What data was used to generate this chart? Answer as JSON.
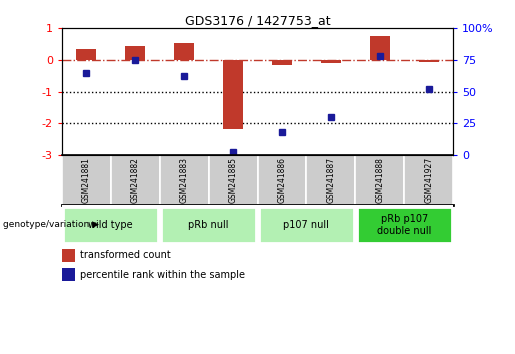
{
  "title": "GDS3176 / 1427753_at",
  "samples": [
    "GSM241881",
    "GSM241882",
    "GSM241883",
    "GSM241885",
    "GSM241886",
    "GSM241887",
    "GSM241888",
    "GSM241927"
  ],
  "bar_values": [
    0.35,
    0.45,
    0.55,
    -2.2,
    -0.15,
    -0.1,
    0.75,
    -0.05
  ],
  "percentile_values": [
    65,
    75,
    62,
    2,
    18,
    30,
    78,
    52
  ],
  "left_ylim": [
    -3,
    1
  ],
  "right_ylim": [
    0,
    100
  ],
  "bar_color": "#c0392b",
  "dot_color": "#1a1a99",
  "dotted_lines": [
    -1,
    -2
  ],
  "right_ticks": [
    0,
    25,
    50,
    75,
    100
  ],
  "right_tick_labels": [
    "0",
    "25",
    "50",
    "75",
    "100%"
  ],
  "left_ticks": [
    -3,
    -2,
    -1,
    0,
    1
  ],
  "groups": [
    {
      "label": "wild type",
      "start": 0,
      "end": 2,
      "color": "#b3f0b3"
    },
    {
      "label": "pRb null",
      "start": 2,
      "end": 4,
      "color": "#b3f0b3"
    },
    {
      "label": "p107 null",
      "start": 4,
      "end": 6,
      "color": "#b3f0b3"
    },
    {
      "label": "pRb p107\ndouble null",
      "start": 6,
      "end": 8,
      "color": "#33cc33"
    }
  ],
  "legend_items": [
    {
      "label": "transformed count",
      "color": "#c0392b"
    },
    {
      "label": "percentile rank within the sample",
      "color": "#1a1a99"
    }
  ],
  "genotype_label": "genotype/variation"
}
